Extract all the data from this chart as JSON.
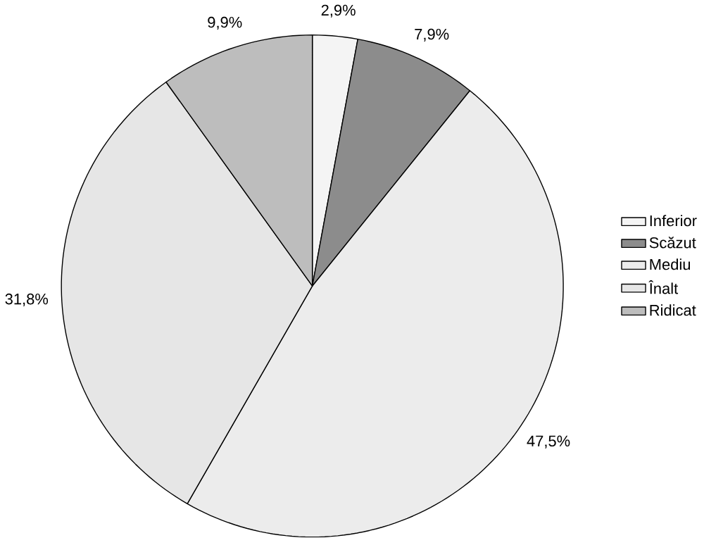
{
  "chart_data": {
    "type": "pie",
    "categories": [
      "Inferior",
      "Scăzut",
      "Mediu",
      "Înalt",
      "Ridicat"
    ],
    "values": [
      2.9,
      7.9,
      47.5,
      31.8,
      9.9
    ],
    "value_labels": [
      "2,9%",
      "7,9%",
      "47,5%",
      "31,8%",
      "9,9%"
    ],
    "colors": [
      "#f4f4f4",
      "#8c8c8c",
      "#ececec",
      "#e6e6e6",
      "#bdbdbd"
    ],
    "legend": "right"
  }
}
